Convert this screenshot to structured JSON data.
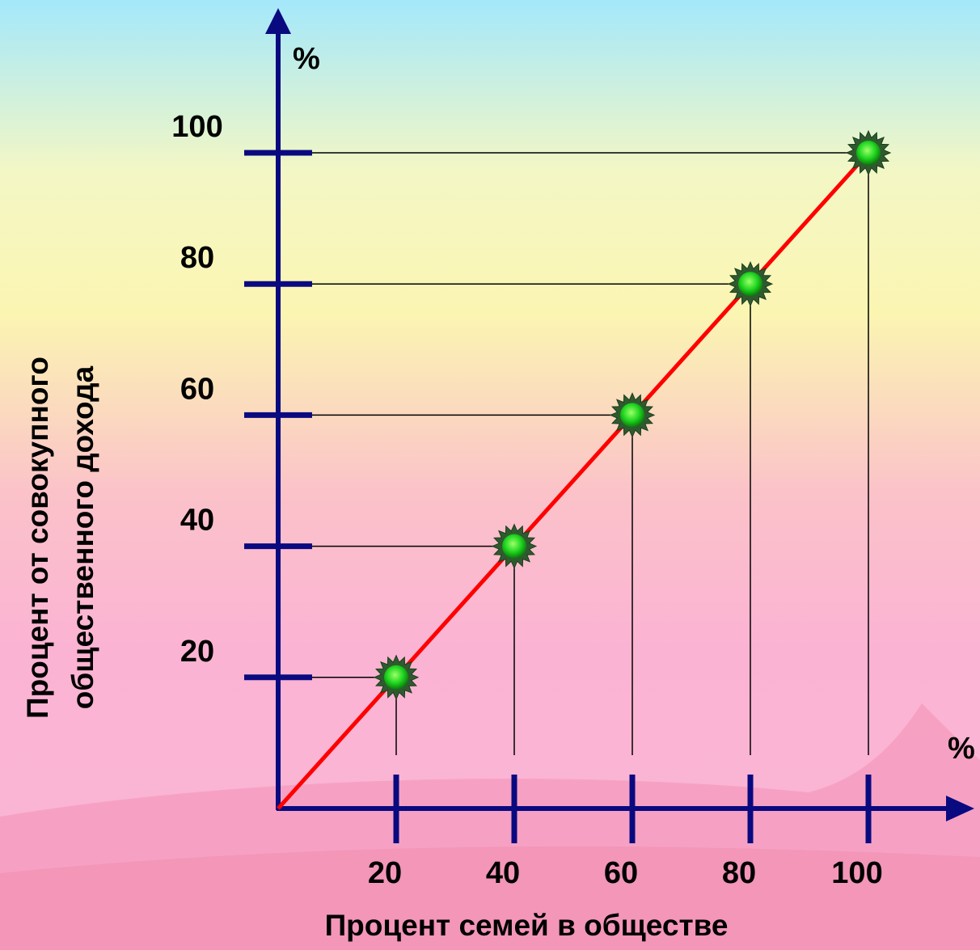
{
  "chart_data": {
    "type": "line",
    "x": [
      0,
      20,
      40,
      60,
      80,
      100
    ],
    "series": [
      {
        "values": [
          0,
          20,
          40,
          60,
          80,
          100
        ]
      }
    ],
    "markers": [
      [
        20,
        20
      ],
      [
        40,
        40
      ],
      [
        60,
        60
      ],
      [
        80,
        80
      ],
      [
        100,
        100
      ]
    ],
    "x_ticks": [
      "20",
      "40",
      "60",
      "80",
      "100"
    ],
    "y_ticks": [
      "20",
      "40",
      "60",
      "80",
      "100"
    ],
    "xlabel": "Процент семей в обществе",
    "ylabel_lines": [
      "Процент от совокупного",
      "общественного дохода"
    ],
    "x_unit": "%",
    "y_unit": "%",
    "xlim": [
      0,
      100
    ],
    "ylim": [
      0,
      100
    ],
    "grid": false,
    "colors": {
      "axis": "#0a0a80",
      "line": "#ff0000",
      "marker": "#22dd22",
      "guide": "#000000"
    }
  }
}
